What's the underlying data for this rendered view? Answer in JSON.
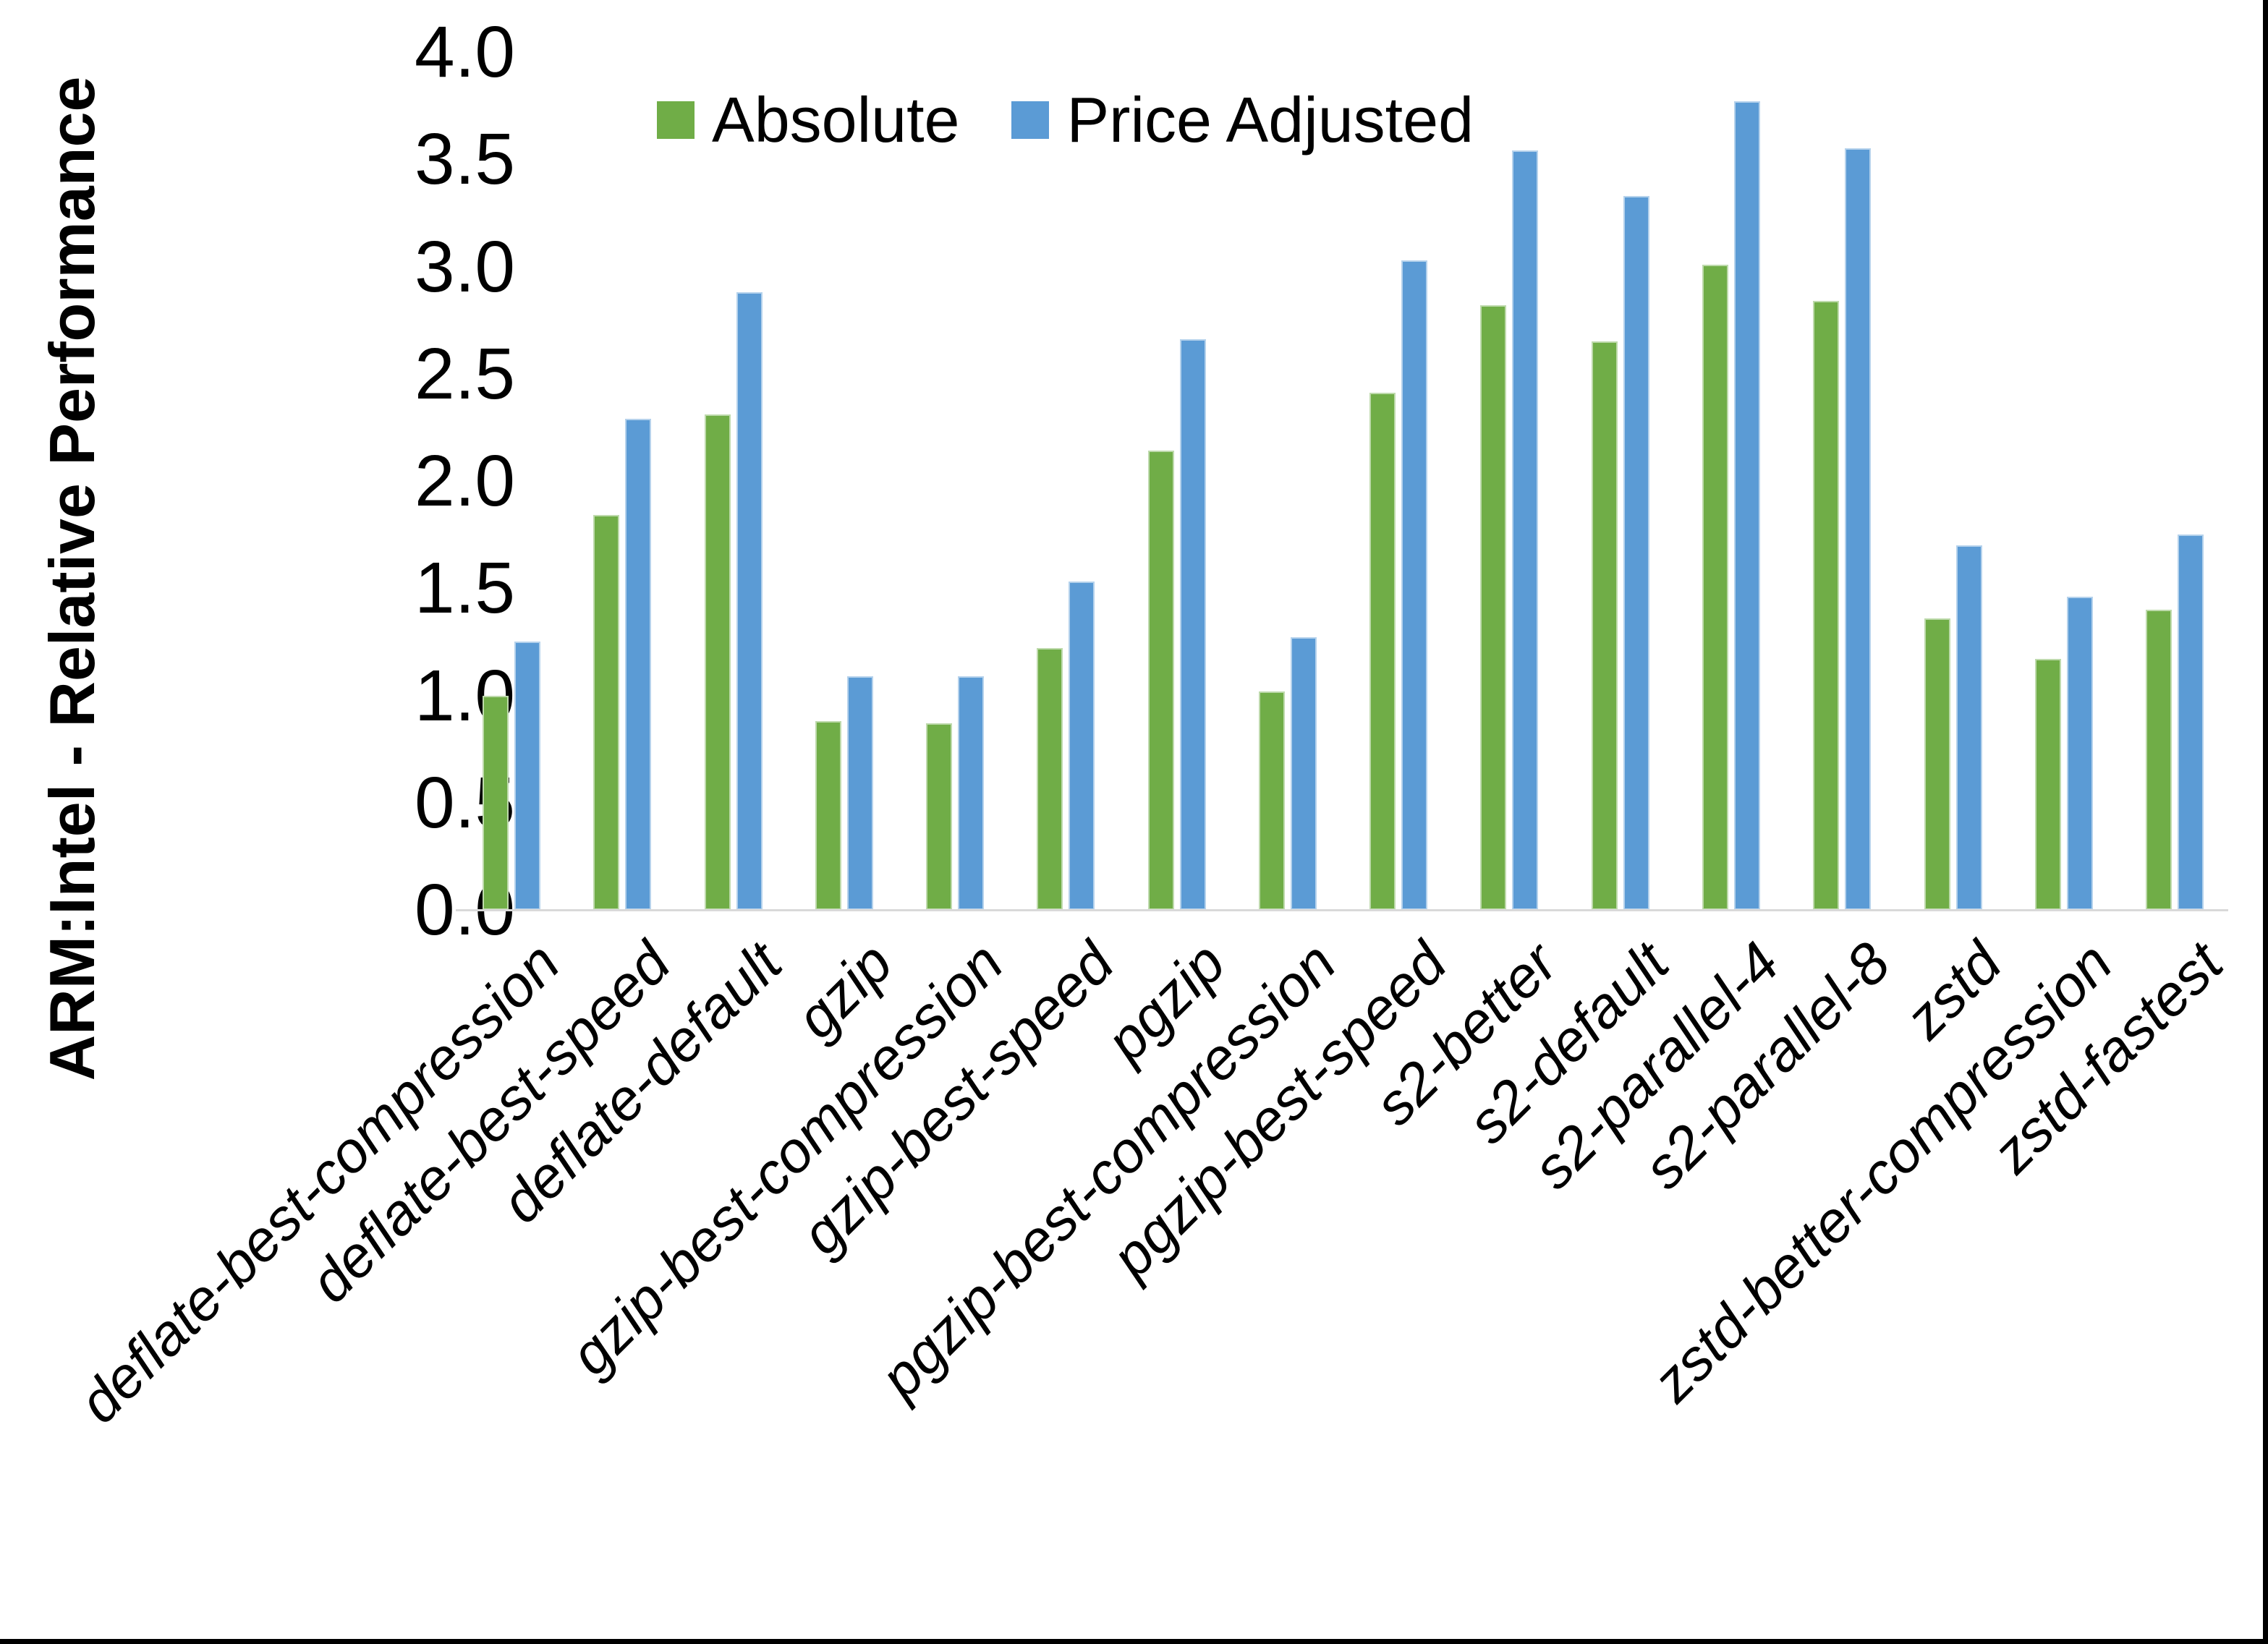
{
  "page": {
    "background": "#ffffff",
    "frame_border_color": "#000000"
  },
  "legend": {
    "position": "top-center",
    "items": [
      "Absolute",
      "Price Adjusted"
    ]
  },
  "chart_data": {
    "type": "bar",
    "title": "",
    "xlabel": "",
    "ylabel": "ARM:Intel - Relative Performance",
    "ylim": [
      0.0,
      4.0
    ],
    "ytick_step": 0.5,
    "ytick_labels": [
      "0.0",
      "0.5",
      "1.0",
      "1.5",
      "2.0",
      "2.5",
      "3.0",
      "3.5",
      "4.0"
    ],
    "grid": false,
    "axis_line_color": "#D9D9D9",
    "categories": [
      "deflate-best-compression",
      "deflate-best-speed",
      "deflate-default",
      "gzip",
      "gzip-best-compression",
      "gzip-best-speed",
      "pgzip",
      "pgzip-best-compression",
      "pgzip-best-speed",
      "s2-better",
      "s2-default",
      "s2-parallel-4",
      "s2-parallel-8",
      "zstd",
      "zstd-better-compression",
      "zstd-fastest"
    ],
    "series": [
      {
        "name": "Absolute",
        "color": "#70AD47",
        "values": [
          1.0,
          1.84,
          2.31,
          0.88,
          0.87,
          1.22,
          2.14,
          1.02,
          2.41,
          2.82,
          2.65,
          3.01,
          2.84,
          1.36,
          1.17,
          1.4
        ]
      },
      {
        "name": "Price Adjusted",
        "color": "#5B9BD5",
        "values": [
          1.25,
          2.29,
          2.88,
          1.09,
          1.09,
          1.53,
          2.66,
          1.27,
          3.03,
          3.54,
          3.33,
          3.77,
          3.55,
          1.7,
          1.46,
          1.75
        ]
      }
    ]
  }
}
